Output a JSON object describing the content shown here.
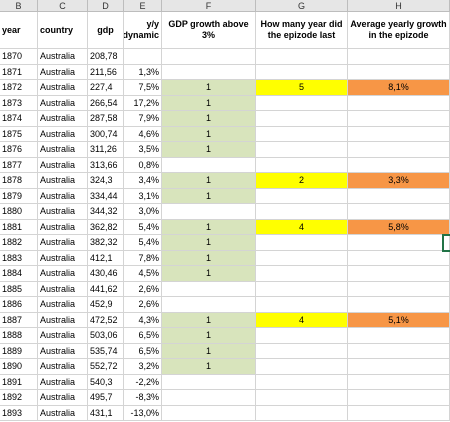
{
  "sheet": {
    "column_letters": [
      "B",
      "C",
      "D",
      "E",
      "F",
      "G",
      "H"
    ],
    "headers": [
      "year",
      "country",
      "gdp",
      "y/y dynamic",
      "GDP growth above 3%",
      "How many year did the epizode last",
      "Average yearly growth in the epizode"
    ],
    "rows": [
      {
        "year": "1870",
        "country": "Australia",
        "gdp": "208,78",
        "yy": "",
        "above": "",
        "years": "",
        "avg": ""
      },
      {
        "year": "1871",
        "country": "Australia",
        "gdp": "211,56",
        "yy": "1,3%",
        "above": "",
        "years": "",
        "avg": ""
      },
      {
        "year": "1872",
        "country": "Australia",
        "gdp": "227,4",
        "yy": "7,5%",
        "above": "1",
        "years": "5",
        "avg": "8,1%"
      },
      {
        "year": "1873",
        "country": "Australia",
        "gdp": "266,54",
        "yy": "17,2%",
        "above": "1",
        "years": "",
        "avg": ""
      },
      {
        "year": "1874",
        "country": "Australia",
        "gdp": "287,58",
        "yy": "7,9%",
        "above": "1",
        "years": "",
        "avg": ""
      },
      {
        "year": "1875",
        "country": "Australia",
        "gdp": "300,74",
        "yy": "4,6%",
        "above": "1",
        "years": "",
        "avg": ""
      },
      {
        "year": "1876",
        "country": "Australia",
        "gdp": "311,26",
        "yy": "3,5%",
        "above": "1",
        "years": "",
        "avg": ""
      },
      {
        "year": "1877",
        "country": "Australia",
        "gdp": "313,66",
        "yy": "0,8%",
        "above": "",
        "years": "",
        "avg": ""
      },
      {
        "year": "1878",
        "country": "Australia",
        "gdp": "324,3",
        "yy": "3,4%",
        "above": "1",
        "years": "2",
        "avg": "3,3%"
      },
      {
        "year": "1879",
        "country": "Australia",
        "gdp": "334,44",
        "yy": "3,1%",
        "above": "1",
        "years": "",
        "avg": ""
      },
      {
        "year": "1880",
        "country": "Australia",
        "gdp": "344,32",
        "yy": "3,0%",
        "above": "",
        "years": "",
        "avg": ""
      },
      {
        "year": "1881",
        "country": "Australia",
        "gdp": "362,82",
        "yy": "5,4%",
        "above": "1",
        "years": "4",
        "avg": "5,8%"
      },
      {
        "year": "1882",
        "country": "Australia",
        "gdp": "382,32",
        "yy": "5,4%",
        "above": "1",
        "years": "",
        "avg": ""
      },
      {
        "year": "1883",
        "country": "Australia",
        "gdp": "412,1",
        "yy": "7,8%",
        "above": "1",
        "years": "",
        "avg": ""
      },
      {
        "year": "1884",
        "country": "Australia",
        "gdp": "430,46",
        "yy": "4,5%",
        "above": "1",
        "years": "",
        "avg": ""
      },
      {
        "year": "1885",
        "country": "Australia",
        "gdp": "441,62",
        "yy": "2,6%",
        "above": "",
        "years": "",
        "avg": ""
      },
      {
        "year": "1886",
        "country": "Australia",
        "gdp": "452,9",
        "yy": "2,6%",
        "above": "",
        "years": "",
        "avg": ""
      },
      {
        "year": "1887",
        "country": "Australia",
        "gdp": "472,52",
        "yy": "4,3%",
        "above": "1",
        "years": "4",
        "avg": "5,1%"
      },
      {
        "year": "1888",
        "country": "Australia",
        "gdp": "503,06",
        "yy": "6,5%",
        "above": "1",
        "years": "",
        "avg": ""
      },
      {
        "year": "1889",
        "country": "Australia",
        "gdp": "535,74",
        "yy": "6,5%",
        "above": "1",
        "years": "",
        "avg": ""
      },
      {
        "year": "1890",
        "country": "Australia",
        "gdp": "552,72",
        "yy": "3,2%",
        "above": "1",
        "years": "",
        "avg": ""
      },
      {
        "year": "1891",
        "country": "Australia",
        "gdp": "540,3",
        "yy": "-2,2%",
        "above": "",
        "years": "",
        "avg": ""
      },
      {
        "year": "1892",
        "country": "Australia",
        "gdp": "495,7",
        "yy": "-8,3%",
        "above": "",
        "years": "",
        "avg": ""
      },
      {
        "year": "1893",
        "country": "Australia",
        "gdp": "431,1",
        "yy": "-13,0%",
        "above": "",
        "years": "",
        "avg": ""
      }
    ]
  },
  "colors": {
    "above_fill": "#d8e4bc",
    "years_fill": "#ffff00",
    "avg_fill": "#f79646",
    "selection": "#217346"
  }
}
